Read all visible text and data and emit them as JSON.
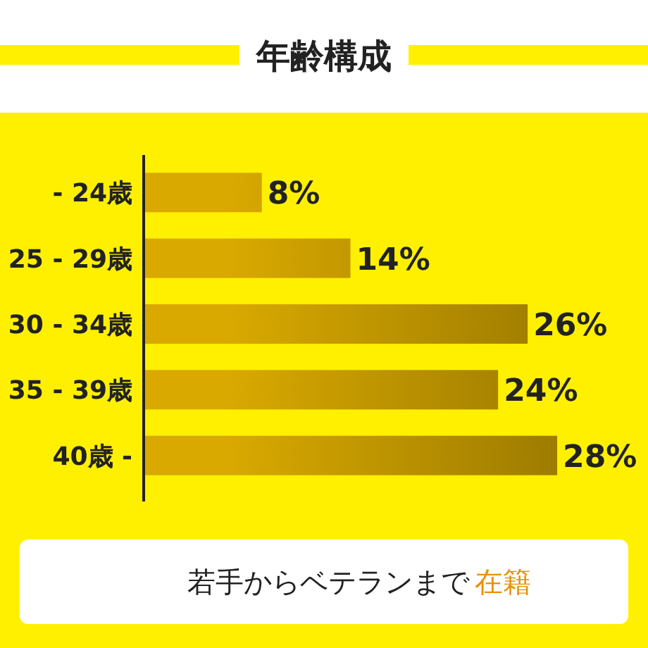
{
  "chart_data": {
    "type": "bar",
    "orientation": "horizontal",
    "title": "年齢構成",
    "categories": [
      "- 24歳",
      "25 - 29歳",
      "30 - 34歳",
      "35 - 39歳",
      "40歳 -"
    ],
    "values": [
      8,
      14,
      26,
      24,
      28
    ],
    "value_labels": [
      "8%",
      "14%",
      "26%",
      "24%",
      "28%"
    ],
    "color": "#d9a900",
    "annotations": [
      "若手からベテランまで",
      "在籍"
    ]
  }
}
